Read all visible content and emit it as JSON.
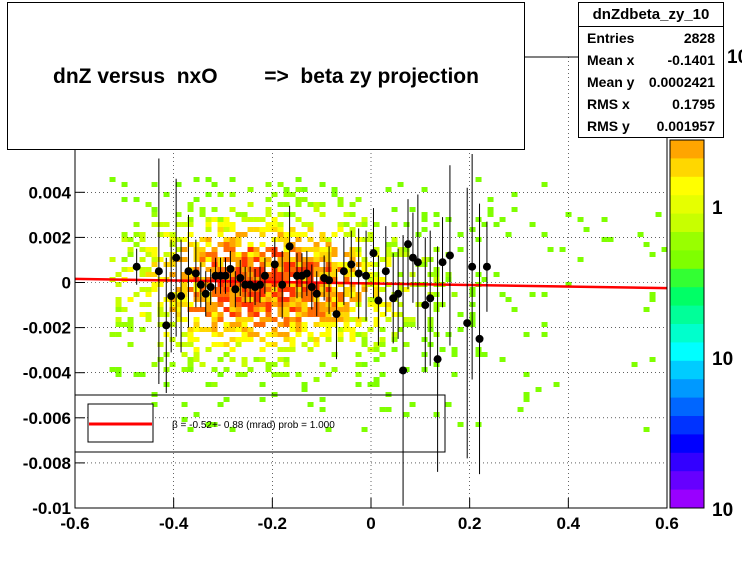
{
  "title": "dnZ versus  nxO        =>  beta zy projection",
  "stats": {
    "name": "dnZdbeta_zy_10",
    "rows": [
      {
        "label": "Entries",
        "value": "2828"
      },
      {
        "label": "Mean x",
        "value": "-0.1401"
      },
      {
        "label": "Mean y",
        "value": "0.0002421"
      },
      {
        "label": "RMS x",
        "value": "0.1795"
      },
      {
        "label": "RMS y",
        "value": "0.001957"
      }
    ]
  },
  "legend": {
    "text": "β =   -0.52+- 0.88 (mrad) prob = 1.000"
  },
  "colors": {
    "fit_line": "#ff0000",
    "points": "#000000"
  },
  "chart_data": {
    "type": "heatmap",
    "x_range": [
      -0.6,
      0.6
    ],
    "y_range": [
      -0.01,
      0.01
    ],
    "x_ticks": [
      "-0.6",
      "-0.4",
      "-0.2",
      "0",
      "0.2",
      "0.4",
      "0.6"
    ],
    "y_ticks": [
      "-0.01",
      "-0.008",
      "-0.006",
      "-0.004",
      "-0.002",
      "0",
      "0.002",
      "0.004"
    ],
    "grid": true,
    "z_scale": "log",
    "z_labels": [
      "10",
      "1",
      "10",
      "10"
    ],
    "fit_line": {
      "x": [
        -0.6,
        0.6
      ],
      "y": [
        0.00016,
        -0.00025
      ]
    },
    "profile": [
      {
        "x": -0.475,
        "y": 0.0007,
        "err": 0.0008
      },
      {
        "x": -0.43,
        "y": 0.0005,
        "err": 0.005
      },
      {
        "x": -0.415,
        "y": -0.0019,
        "err": 0.003
      },
      {
        "x": -0.405,
        "y": -0.0006,
        "err": 0.0025
      },
      {
        "x": -0.395,
        "y": 0.0011,
        "err": 0.0035
      },
      {
        "x": -0.385,
        "y": -0.0006,
        "err": 0.0025
      },
      {
        "x": -0.37,
        "y": 0.0005,
        "err": 0.0025
      },
      {
        "x": -0.355,
        "y": 0.0004,
        "err": 0.0015
      },
      {
        "x": -0.345,
        "y": -0.0001,
        "err": 0.001
      },
      {
        "x": -0.335,
        "y": -0.0005,
        "err": 0.001
      },
      {
        "x": -0.325,
        "y": -0.0002,
        "err": 0.0008
      },
      {
        "x": -0.315,
        "y": 0.0003,
        "err": 0.0008
      },
      {
        "x": -0.305,
        "y": 0.0003,
        "err": 0.0008
      },
      {
        "x": -0.295,
        "y": 0.0003,
        "err": 0.0008
      },
      {
        "x": -0.285,
        "y": 0.0006,
        "err": 0.0008
      },
      {
        "x": -0.275,
        "y": -0.0003,
        "err": 0.0008
      },
      {
        "x": -0.265,
        "y": 0.0002,
        "err": 0.0008
      },
      {
        "x": -0.255,
        "y": -0.0001,
        "err": 0.0008
      },
      {
        "x": -0.245,
        "y": -0.0001,
        "err": 0.0008
      },
      {
        "x": -0.235,
        "y": -0.0002,
        "err": 0.0008
      },
      {
        "x": -0.225,
        "y": -0.0001,
        "err": 0.0008
      },
      {
        "x": -0.215,
        "y": 0.0003,
        "err": 0.0008
      },
      {
        "x": -0.195,
        "y": 0.0008,
        "err": 0.0012
      },
      {
        "x": -0.18,
        "y": -0.0001,
        "err": 0.0015
      },
      {
        "x": -0.165,
        "y": 0.0016,
        "err": 0.0018
      },
      {
        "x": -0.15,
        "y": 0.0003,
        "err": 0.001
      },
      {
        "x": -0.14,
        "y": 0.0003,
        "err": 0.001
      },
      {
        "x": -0.13,
        "y": 0.0004,
        "err": 0.001
      },
      {
        "x": -0.12,
        "y": -0.0002,
        "err": 0.001
      },
      {
        "x": -0.11,
        "y": -0.0005,
        "err": 0.001
      },
      {
        "x": -0.095,
        "y": 0.0002,
        "err": 0.001
      },
      {
        "x": -0.085,
        "y": 0.0001,
        "err": 0.0015
      },
      {
        "x": -0.07,
        "y": -0.0014,
        "err": 0.002
      },
      {
        "x": -0.055,
        "y": 0.0005,
        "err": 0.0015
      },
      {
        "x": -0.04,
        "y": 0.0008,
        "err": 0.0015
      },
      {
        "x": -0.025,
        "y": 0.0004,
        "err": 0.002
      },
      {
        "x": -0.01,
        "y": 0.0003,
        "err": 0.002
      },
      {
        "x": 0.005,
        "y": 0.0013,
        "err": 0.002
      },
      {
        "x": 0.015,
        "y": -0.0008,
        "err": 0.002
      },
      {
        "x": 0.03,
        "y": 0.0005,
        "err": 0.002
      },
      {
        "x": 0.045,
        "y": -0.0007,
        "err": 0.002
      },
      {
        "x": 0.055,
        "y": -0.0005,
        "err": 0.002
      },
      {
        "x": 0.065,
        "y": -0.0039,
        "err": 0.006
      },
      {
        "x": 0.075,
        "y": 0.0017,
        "err": 0.002
      },
      {
        "x": 0.085,
        "y": 0.0011,
        "err": 0.002
      },
      {
        "x": 0.095,
        "y": 0.0009,
        "err": 0.003
      },
      {
        "x": 0.11,
        "y": -0.001,
        "err": 0.003
      },
      {
        "x": 0.12,
        "y": -0.0007,
        "err": 0.003
      },
      {
        "x": 0.135,
        "y": -0.0034,
        "err": 0.005
      },
      {
        "x": 0.145,
        "y": 0.0009,
        "err": 0.002
      },
      {
        "x": 0.16,
        "y": 0.0012,
        "err": 0.004
      },
      {
        "x": 0.195,
        "y": -0.0018,
        "err": 0.006
      },
      {
        "x": 0.205,
        "y": 0.0007,
        "err": 0.005
      },
      {
        "x": 0.22,
        "y": -0.0025,
        "err": 0.006
      },
      {
        "x": 0.235,
        "y": 0.0007,
        "err": 0.002
      }
    ]
  }
}
